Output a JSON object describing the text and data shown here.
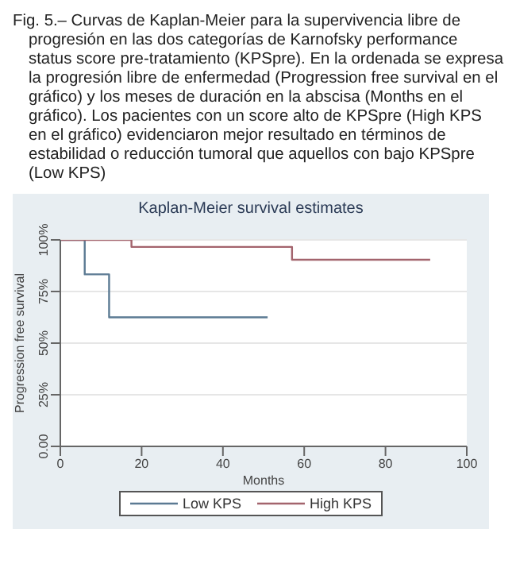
{
  "chart_data": {
    "type": "step",
    "title": "Kaplan-Meier survival estimates",
    "xlabel": "Months",
    "ylabel": "Progression free survival",
    "annotations": [
      "Fig. 5.– Curvas de Kaplan-Meier para la supervivencia libre de progresión en las dos categorías de Karnofsky performance status score pre-tratamiento (KPSpre). En la ordenada se expresa la progresión libre de enfermedad (Progression free survival en el gráfico) y los meses de duración en la abscisa (Months en el gráfico). Los pacientes con un score alto de KPSpre (High KPS en el gráfico) evidenciaron mejor resultado en términos de estabilidad o reducción tumoral que aquellos con bajo KPSpre (Low KPS)"
    ],
    "series": [
      {
        "name": "Low KPS",
        "color": "#5b7a93",
        "x": [
          0,
          6,
          12,
          51
        ],
        "values": [
          100,
          83.3,
          62.5,
          62.5
        ]
      },
      {
        "name": "High KPS",
        "color": "#a3646d",
        "x": [
          0,
          17.5,
          57,
          91
        ],
        "values": [
          100,
          96.6,
          90.4,
          90.4
        ]
      }
    ],
    "xlim": [
      0,
      100
    ],
    "xticks": [
      0,
      20,
      40,
      60,
      80,
      100
    ],
    "ylim": [
      0,
      100
    ],
    "yticks": [
      {
        "value": 0,
        "label": "0.00"
      },
      {
        "value": 25,
        "label": "25%"
      },
      {
        "value": 50,
        "label": "50%"
      },
      {
        "value": 75,
        "label": "75%"
      },
      {
        "value": 100,
        "label": "100%"
      }
    ],
    "grid": "y",
    "legend": "bottom",
    "line_style": "solid",
    "marker": "none"
  }
}
